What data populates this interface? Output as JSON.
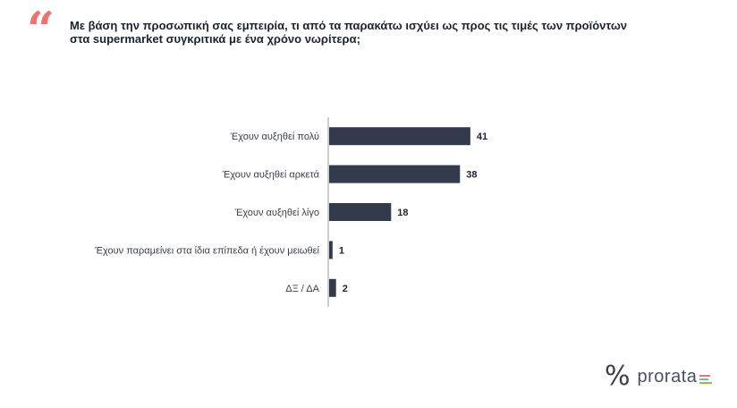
{
  "header": {
    "question_line1": "Με βάση την προσωπική σας εμπειρία, τι από τα παρακάτω ισχύει ως προς τις τιμές των προϊόντων",
    "question_line2": "στα supermarket συγκριτικά με ένα χρόνο νωρίτερα;"
  },
  "chart_data": {
    "type": "bar",
    "orientation": "horizontal",
    "categories": [
      "Έχουν αυξηθεί πολύ",
      "Έχουν αυξηθεί αρκετά",
      "Έχουν αυξηθεί λίγο",
      "Έχουν παραμείνει στα ίδια επίπεδα ή έχουν μειωθεί",
      "ΔΞ / ΔΑ"
    ],
    "values": [
      41,
      38,
      18,
      1,
      2
    ],
    "data_labels": [
      "41",
      "38",
      "18",
      "1",
      "2"
    ],
    "bar_color": "#323a4b",
    "grid": false,
    "legend": "none"
  },
  "logo": {
    "symbol": "%",
    "text": "prorata",
    "bar_colors": [
      "#e8766f",
      "#6fb6d9",
      "#8bc34a"
    ]
  }
}
